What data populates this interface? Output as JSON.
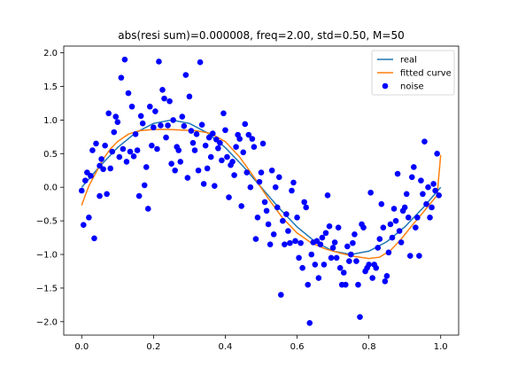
{
  "chart_data": {
    "type": "scatter",
    "title": "abs(resi sum)=0.000008, freq=2.00, std=0.50, M=50",
    "xlabel": "",
    "ylabel": "",
    "xlim": [
      -0.05,
      1.05
    ],
    "ylim": [
      -2.2,
      2.1
    ],
    "x_ticks": [
      0.0,
      0.2,
      0.4,
      0.6,
      0.8,
      1.0
    ],
    "y_ticks": [
      -2.0,
      -1.5,
      -1.0,
      -0.5,
      0.0,
      0.5,
      1.0,
      1.5,
      2.0
    ],
    "x_tick_labels": [
      "0.0",
      "0.2",
      "0.4",
      "0.6",
      "0.8",
      "1.0"
    ],
    "y_tick_labels": [
      "−2.0",
      "−1.5",
      "−1.0",
      "−0.5",
      "0.0",
      "0.5",
      "1.0",
      "1.5",
      "2.0"
    ],
    "grid": false,
    "legend_position": "top-right",
    "series": [
      {
        "name": "real",
        "kind": "line",
        "color": "#1f77b4",
        "x": [
          0.0,
          0.05,
          0.1,
          0.15,
          0.2,
          0.25,
          0.3,
          0.35,
          0.4,
          0.45,
          0.5,
          0.55,
          0.6,
          0.65,
          0.7,
          0.75,
          0.8,
          0.85,
          0.9,
          0.95,
          1.0
        ],
        "y": [
          0.0,
          0.31,
          0.59,
          0.81,
          0.95,
          1.0,
          0.95,
          0.81,
          0.59,
          0.31,
          0.0,
          -0.31,
          -0.59,
          -0.81,
          -0.95,
          -1.0,
          -0.95,
          -0.81,
          -0.59,
          -0.31,
          0.0
        ]
      },
      {
        "name": "fitted curve",
        "kind": "line",
        "color": "#ff7f0e",
        "x": [
          0.0,
          0.01,
          0.02,
          0.04,
          0.06,
          0.08,
          0.1,
          0.13,
          0.16,
          0.2,
          0.24,
          0.28,
          0.32,
          0.36,
          0.4,
          0.44,
          0.48,
          0.52,
          0.56,
          0.6,
          0.64,
          0.68,
          0.72,
          0.76,
          0.8,
          0.83,
          0.86,
          0.89,
          0.92,
          0.95,
          0.97,
          0.99,
          1.0
        ],
        "y": [
          -0.27,
          -0.12,
          0.02,
          0.22,
          0.42,
          0.57,
          0.68,
          0.79,
          0.84,
          0.86,
          0.86,
          0.85,
          0.84,
          0.8,
          0.68,
          0.45,
          0.15,
          -0.17,
          -0.46,
          -0.68,
          -0.83,
          -0.92,
          -0.98,
          -1.03,
          -1.06,
          -1.04,
          -0.94,
          -0.77,
          -0.57,
          -0.38,
          -0.25,
          -0.12,
          0.48
        ]
      },
      {
        "name": "noise",
        "kind": "scatter",
        "color": "#0000ff",
        "points": [
          [
            0.0,
            -0.05
          ],
          [
            0.005,
            -0.56
          ],
          [
            0.01,
            0.1
          ],
          [
            0.015,
            0.22
          ],
          [
            0.02,
            -0.45
          ],
          [
            0.025,
            0.17
          ],
          [
            0.03,
            0.55
          ],
          [
            0.035,
            -0.76
          ],
          [
            0.04,
            0.65
          ],
          [
            0.05,
            0.32
          ],
          [
            0.05,
            -0.13
          ],
          [
            0.055,
            0.42
          ],
          [
            0.06,
            0.27
          ],
          [
            0.065,
            0.62
          ],
          [
            0.07,
            -0.1
          ],
          [
            0.075,
            1.1
          ],
          [
            0.08,
            0.28
          ],
          [
            0.085,
            0.53
          ],
          [
            0.09,
            0.82
          ],
          [
            0.095,
            1.05
          ],
          [
            0.1,
            0.97
          ],
          [
            0.105,
            0.45
          ],
          [
            0.11,
            1.63
          ],
          [
            0.115,
            0.57
          ],
          [
            0.12,
            1.9
          ],
          [
            0.125,
            0.38
          ],
          [
            0.13,
            1.4
          ],
          [
            0.135,
            0.53
          ],
          [
            0.14,
            1.2
          ],
          [
            0.145,
            0.46
          ],
          [
            0.15,
            0.79
          ],
          [
            0.155,
            0.55
          ],
          [
            0.16,
            -0.13
          ],
          [
            0.165,
            1.06
          ],
          [
            0.17,
            0.95
          ],
          [
            0.175,
            0.03
          ],
          [
            0.18,
            0.3
          ],
          [
            0.185,
            -0.32
          ],
          [
            0.19,
            1.2
          ],
          [
            0.195,
            0.62
          ],
          [
            0.2,
            0.89
          ],
          [
            0.205,
            1.13
          ],
          [
            0.21,
            0.57
          ],
          [
            0.215,
            1.87
          ],
          [
            0.22,
            0.92
          ],
          [
            0.225,
            1.45
          ],
          [
            0.23,
            1.32
          ],
          [
            0.235,
            0.74
          ],
          [
            0.24,
            0.92
          ],
          [
            0.245,
            1.28
          ],
          [
            0.25,
            0.35
          ],
          [
            0.255,
            1.0
          ],
          [
            0.26,
            0.25
          ],
          [
            0.265,
            0.6
          ],
          [
            0.27,
            0.55
          ],
          [
            0.275,
            0.38
          ],
          [
            0.28,
            1.05
          ],
          [
            0.285,
            0.91
          ],
          [
            0.29,
            1.67
          ],
          [
            0.295,
            0.14
          ],
          [
            0.3,
            1.35
          ],
          [
            0.305,
            0.84
          ],
          [
            0.31,
            0.66
          ],
          [
            0.315,
            0.55
          ],
          [
            0.32,
            0.79
          ],
          [
            0.325,
            0.25
          ],
          [
            0.33,
            1.86
          ],
          [
            0.335,
            0.93
          ],
          [
            0.34,
            0.05
          ],
          [
            0.345,
            0.62
          ],
          [
            0.35,
            0.28
          ],
          [
            0.355,
            0.74
          ],
          [
            0.36,
            0.45
          ],
          [
            0.365,
            0.8
          ],
          [
            0.37,
            0.02
          ],
          [
            0.375,
            0.71
          ],
          [
            0.38,
            0.58
          ],
          [
            0.385,
            0.66
          ],
          [
            0.39,
            0.4
          ],
          [
            0.395,
            1.1
          ],
          [
            0.4,
            0.85
          ],
          [
            0.405,
            0.45
          ],
          [
            0.41,
            -0.15
          ],
          [
            0.415,
            0.33
          ],
          [
            0.42,
            0.38
          ],
          [
            0.425,
            0.18
          ],
          [
            0.43,
            0.6
          ],
          [
            0.435,
            0.78
          ],
          [
            0.44,
            0.72
          ],
          [
            0.445,
            -0.28
          ],
          [
            0.45,
            0.52
          ],
          [
            0.455,
            0.94
          ],
          [
            0.46,
            0.22
          ],
          [
            0.465,
            0.78
          ],
          [
            0.47,
            0.0
          ],
          [
            0.475,
            0.72
          ],
          [
            0.48,
            0.6
          ],
          [
            0.485,
            -0.77
          ],
          [
            0.49,
            -0.45
          ],
          [
            0.495,
            0.08
          ],
          [
            0.5,
            0.22
          ],
          [
            0.505,
            0.65
          ],
          [
            0.51,
            -0.22
          ],
          [
            0.515,
            -0.35
          ],
          [
            0.52,
            -0.55
          ],
          [
            0.525,
            -0.85
          ],
          [
            0.53,
            0.25
          ],
          [
            0.535,
            -0.7
          ],
          [
            0.54,
            0.0
          ],
          [
            0.545,
            -0.3
          ],
          [
            0.55,
            0.15
          ],
          [
            0.555,
            -1.6
          ],
          [
            0.56,
            -0.5
          ],
          [
            0.565,
            -0.85
          ],
          [
            0.57,
            -0.4
          ],
          [
            0.575,
            -0.65
          ],
          [
            0.58,
            -0.83
          ],
          [
            0.585,
            -0.05
          ],
          [
            0.59,
            0.07
          ],
          [
            0.595,
            -0.8
          ],
          [
            0.6,
            -0.45
          ],
          [
            0.605,
            -1.05
          ],
          [
            0.61,
            -0.83
          ],
          [
            0.615,
            -1.2
          ],
          [
            0.62,
            -0.22
          ],
          [
            0.625,
            -0.3
          ],
          [
            0.63,
            -1.45
          ],
          [
            0.635,
            -2.02
          ],
          [
            0.64,
            -1.0
          ],
          [
            0.645,
            -0.82
          ],
          [
            0.65,
            -1.15
          ],
          [
            0.655,
            -0.8
          ],
          [
            0.66,
            -1.35
          ],
          [
            0.665,
            -0.85
          ],
          [
            0.67,
            -0.75
          ],
          [
            0.675,
            -1.15
          ],
          [
            0.68,
            -0.68
          ],
          [
            0.685,
            -0.12
          ],
          [
            0.69,
            -0.58
          ],
          [
            0.695,
            -1.05
          ],
          [
            0.7,
            -0.9
          ],
          [
            0.705,
            -0.82
          ],
          [
            0.71,
            -1.05
          ],
          [
            0.715,
            -0.6
          ],
          [
            0.72,
            -1.2
          ],
          [
            0.725,
            -1.45
          ],
          [
            0.73,
            -1.27
          ],
          [
            0.735,
            -1.45
          ],
          [
            0.74,
            -0.88
          ],
          [
            0.745,
            -1.1
          ],
          [
            0.75,
            -1.0
          ],
          [
            0.755,
            -0.83
          ],
          [
            0.76,
            -0.7
          ],
          [
            0.765,
            -1.1
          ],
          [
            0.77,
            -1.45
          ],
          [
            0.775,
            -1.93
          ],
          [
            0.78,
            -0.55
          ],
          [
            0.785,
            -0.6
          ],
          [
            0.79,
            -1.25
          ],
          [
            0.795,
            -1.2
          ],
          [
            0.8,
            -1.15
          ],
          [
            0.805,
            -0.08
          ],
          [
            0.81,
            -1.35
          ],
          [
            0.815,
            -1.15
          ],
          [
            0.82,
            -1.2
          ],
          [
            0.825,
            -0.9
          ],
          [
            0.83,
            -0.77
          ],
          [
            0.835,
            -0.25
          ],
          [
            0.84,
            -0.6
          ],
          [
            0.845,
            -1.4
          ],
          [
            0.85,
            -1.32
          ],
          [
            0.855,
            -0.97
          ],
          [
            0.86,
            -0.55
          ],
          [
            0.865,
            -0.75
          ],
          [
            0.87,
            -0.32
          ],
          [
            0.875,
            -0.5
          ],
          [
            0.88,
            0.2
          ],
          [
            0.885,
            -0.65
          ],
          [
            0.89,
            -0.82
          ],
          [
            0.895,
            -0.35
          ],
          [
            0.9,
            -0.3
          ],
          [
            0.905,
            -0.1
          ],
          [
            0.91,
            -0.45
          ],
          [
            0.915,
            -1.02
          ],
          [
            0.92,
            0.15
          ],
          [
            0.925,
            0.3
          ],
          [
            0.93,
            -0.6
          ],
          [
            0.935,
            -0.45
          ],
          [
            0.94,
            -1.02
          ],
          [
            0.945,
            0.1
          ],
          [
            0.95,
            -0.1
          ],
          [
            0.955,
            0.68
          ],
          [
            0.96,
            -0.25
          ],
          [
            0.965,
            0.0
          ],
          [
            0.97,
            -0.45
          ],
          [
            0.975,
            -0.3
          ],
          [
            0.98,
            0.05
          ],
          [
            0.985,
            -0.05
          ],
          [
            0.99,
            0.5
          ],
          [
            0.995,
            -0.12
          ]
        ]
      }
    ]
  }
}
